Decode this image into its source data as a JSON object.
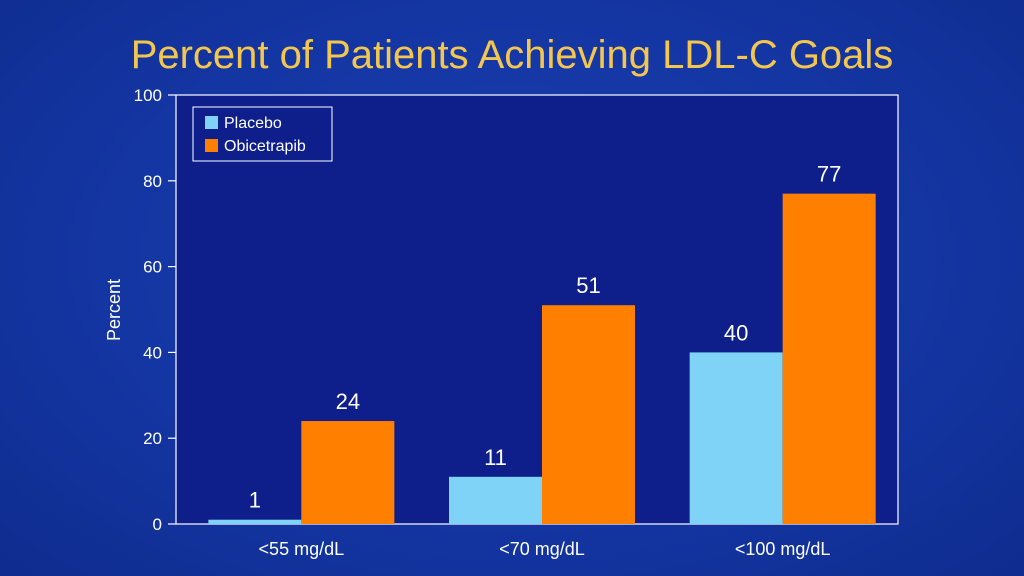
{
  "chart_data": {
    "type": "bar",
    "title": "Percent of Patients Achieving LDL-C Goals",
    "xlabel": "",
    "ylabel": "Percent",
    "ylim": [
      0,
      100
    ],
    "yticks": [
      0,
      20,
      40,
      60,
      80,
      100
    ],
    "categories": [
      "<55 mg/dL",
      "<70 mg/dL",
      "<100 mg/dL"
    ],
    "series": [
      {
        "name": "Placebo",
        "color": "#7ed3f7",
        "values": [
          1,
          11,
          40
        ]
      },
      {
        "name": "Obicetrapib",
        "color": "#ff8000",
        "values": [
          24,
          51,
          77
        ]
      }
    ],
    "legend": "top-left",
    "grid": false
  }
}
